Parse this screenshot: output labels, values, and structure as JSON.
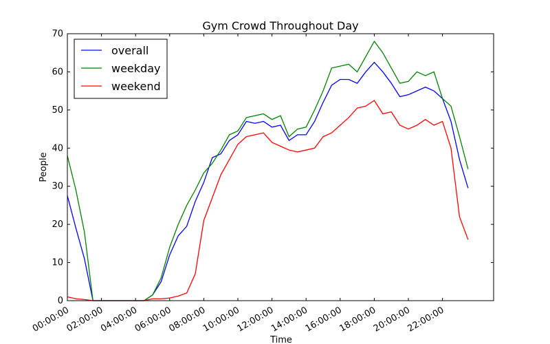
{
  "chart_data": {
    "type": "line",
    "title": "Gym Crowd Throughout Day",
    "xlabel": "Time",
    "ylabel": "People",
    "x": [
      0,
      0.5,
      1,
      1.5,
      2,
      2.5,
      3,
      3.5,
      4,
      4.5,
      5,
      5.5,
      6,
      6.5,
      7,
      7.5,
      8,
      8.5,
      9,
      9.5,
      10,
      10.5,
      11,
      11.5,
      12,
      12.5,
      13,
      13.5,
      14,
      14.5,
      15,
      15.5,
      16,
      16.5,
      17,
      17.5,
      18,
      18.5,
      19,
      19.5,
      20,
      20.5,
      21,
      21.5,
      22,
      22.5,
      23,
      23.5
    ],
    "series": [
      {
        "name": "overall",
        "color": "#0000ff",
        "values": [
          27.5,
          19,
          11,
          0,
          0,
          0,
          0,
          0,
          0,
          0,
          1.5,
          5,
          12,
          17,
          19.5,
          26,
          31,
          37.5,
          38.5,
          42,
          43.5,
          47,
          46.5,
          47,
          45.5,
          46,
          42,
          43.5,
          43.5,
          47,
          52,
          56.5,
          58,
          58,
          57,
          60,
          62.5,
          60,
          57,
          53.5,
          54,
          55,
          56,
          55,
          53,
          47,
          37,
          29.5
        ]
      },
      {
        "name": "weekday",
        "color": "#008000",
        "values": [
          38,
          29,
          18,
          0,
          0,
          0,
          0,
          0,
          0,
          0,
          1.5,
          6,
          14,
          20,
          25,
          29,
          33.5,
          36,
          39.5,
          43.5,
          44.5,
          48,
          48.5,
          49,
          47.5,
          48.5,
          43,
          45,
          45.5,
          50,
          55,
          61,
          61.5,
          62,
          60,
          64,
          68,
          65,
          61,
          57,
          57.5,
          60,
          59,
          60,
          53,
          51,
          43,
          34.5
        ]
      },
      {
        "name": "weekend",
        "color": "#ff0000",
        "values": [
          1,
          0.5,
          0.3,
          0,
          0,
          0,
          0,
          0,
          0,
          0,
          0.5,
          0.5,
          0.7,
          1.2,
          2,
          7,
          21,
          27,
          33,
          37,
          41,
          43,
          43.5,
          44,
          41.5,
          40.5,
          39.5,
          39,
          39.5,
          40,
          43,
          44,
          46,
          48,
          50.5,
          51,
          52.5,
          49,
          49.5,
          46,
          45,
          46,
          47.5,
          46,
          47,
          40,
          22,
          16
        ]
      }
    ],
    "xlim": [
      0,
      25
    ],
    "ylim": [
      0,
      70
    ],
    "xticks": [
      {
        "value": 0,
        "label": "00:00:00"
      },
      {
        "value": 2,
        "label": "02:00:00"
      },
      {
        "value": 4,
        "label": "04:00:00"
      },
      {
        "value": 6,
        "label": "06:00:00"
      },
      {
        "value": 8,
        "label": "08:00:00"
      },
      {
        "value": 10,
        "label": "10:00:00"
      },
      {
        "value": 12,
        "label": "12:00:00"
      },
      {
        "value": 14,
        "label": "14:00:00"
      },
      {
        "value": 16,
        "label": "16:00:00"
      },
      {
        "value": 18,
        "label": "18:00:00"
      },
      {
        "value": 20,
        "label": "20:00:00"
      },
      {
        "value": 22,
        "label": "22:00:00"
      }
    ],
    "yticks": [
      0,
      10,
      20,
      30,
      40,
      50,
      60,
      70
    ],
    "legend": "upper left"
  }
}
